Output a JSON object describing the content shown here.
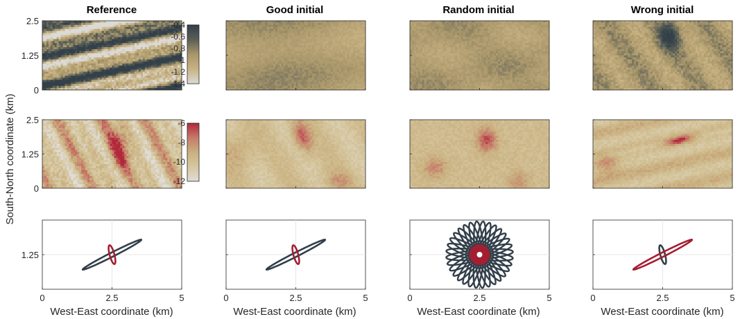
{
  "figure": {
    "column_titles": [
      "Reference",
      "Good initial",
      "Random initial",
      "Wrong initial"
    ],
    "ylabel": "South-North coordinate (km)",
    "xlabel": "West-East coordinate (km)"
  },
  "chart_data": [
    {
      "type": "heatmap",
      "row": "top",
      "panels": [
        "Reference",
        "Good initial",
        "Random initial",
        "Wrong initial"
      ],
      "xlim": [
        0,
        5
      ],
      "ylim": [
        0,
        2.5
      ],
      "yticks": [
        "0",
        "1.25",
        "2.5"
      ],
      "colorbar": {
        "range": [
          -1.4,
          -0.4
        ],
        "ticks": [
          "-0.4",
          "-0.6",
          "-0.8",
          "-1",
          "-1.2",
          "-1.4"
        ],
        "tick_values": [
          -0.4,
          -0.6,
          -0.8,
          -1,
          -1.2,
          -1.4
        ],
        "colors": [
          "#dcdad6",
          "#c8b282",
          "#a8966a",
          "#5a5f58",
          "#334049"
        ]
      }
    },
    {
      "type": "heatmap",
      "row": "middle",
      "panels": [
        "Reference",
        "Good initial",
        "Random initial",
        "Wrong initial"
      ],
      "xlim": [
        0,
        5
      ],
      "ylim": [
        0,
        2.5
      ],
      "yticks": [
        "0",
        "1.25",
        "2.5"
      ],
      "colorbar": {
        "range": [
          -12,
          -6
        ],
        "ticks": [
          "-6",
          "-8",
          "-10",
          "-12"
        ],
        "tick_values": [
          -6,
          -8,
          -10,
          -12
        ],
        "colors": [
          "#e0ddd8",
          "#d6c7a0",
          "#c9b07f",
          "#c77a6a",
          "#b1283a"
        ]
      }
    },
    {
      "type": "line",
      "row": "bottom",
      "description_series": "anisotropy ellipses",
      "xlim": [
        0,
        5
      ],
      "xticks": [
        "0",
        "2.5",
        "5"
      ],
      "ytick": "1.25",
      "panels": [
        {
          "name": "Reference",
          "ellipses": [
            {
              "center": [
                2.5,
                1.25
              ],
              "a": 1.18,
              "b": 0.075,
              "angle_deg": 27,
              "color": "#323f4a"
            },
            {
              "center": [
                2.5,
                1.25
              ],
              "a": 0.35,
              "b": 0.085,
              "angle_deg": 105,
              "color": "#a31f32"
            }
          ]
        },
        {
          "name": "Good initial",
          "ellipses": [
            {
              "center": [
                2.5,
                1.25
              ],
              "a": 1.18,
              "b": 0.075,
              "angle_deg": 27,
              "color": "#323f4a"
            },
            {
              "center": [
                2.5,
                1.25
              ],
              "a": 0.35,
              "b": 0.085,
              "angle_deg": 105,
              "color": "#a31f32"
            }
          ]
        },
        {
          "name": "Random initial",
          "flower": {
            "count": 16,
            "a": 1.2,
            "b": 0.08,
            "color": "#323f4a",
            "inner_count": 16,
            "inner_a": 0.35,
            "inner_b": 0.07,
            "inner_color": "#a31f32"
          }
        },
        {
          "name": "Wrong initial",
          "ellipses": [
            {
              "center": [
                2.5,
                1.25
              ],
              "a": 0.35,
              "b": 0.085,
              "angle_deg": 105,
              "color": "#323f4a"
            },
            {
              "center": [
                2.5,
                1.25
              ],
              "a": 1.18,
              "b": 0.075,
              "angle_deg": 27,
              "color": "#a31f32"
            }
          ]
        }
      ]
    }
  ]
}
